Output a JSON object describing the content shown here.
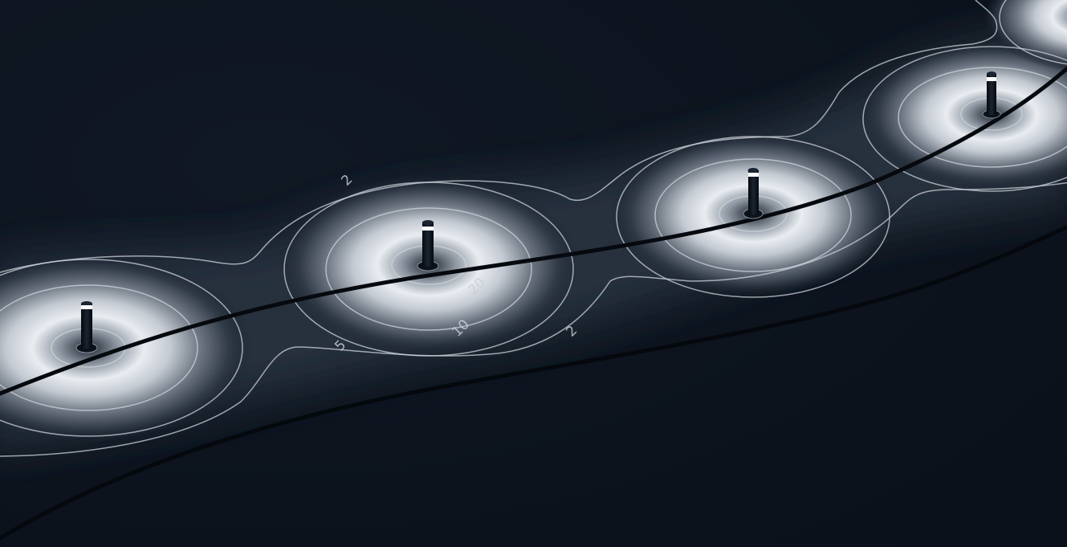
{
  "scene": {
    "background_color": "#0b121b",
    "isoline_color": "#cfd4db",
    "path_edge_color": "#05080d",
    "luminaire_color": "#0d131c",
    "luminaire_lamp_color": "#ffffff"
  },
  "isoline_labels": [
    {
      "id": "2-upper",
      "text": "2"
    },
    {
      "id": "5",
      "text": "5"
    },
    {
      "id": "10",
      "text": "10"
    },
    {
      "id": "20",
      "text": "20"
    },
    {
      "id": "2-lower",
      "text": "2"
    }
  ],
  "bollard_count": 4
}
